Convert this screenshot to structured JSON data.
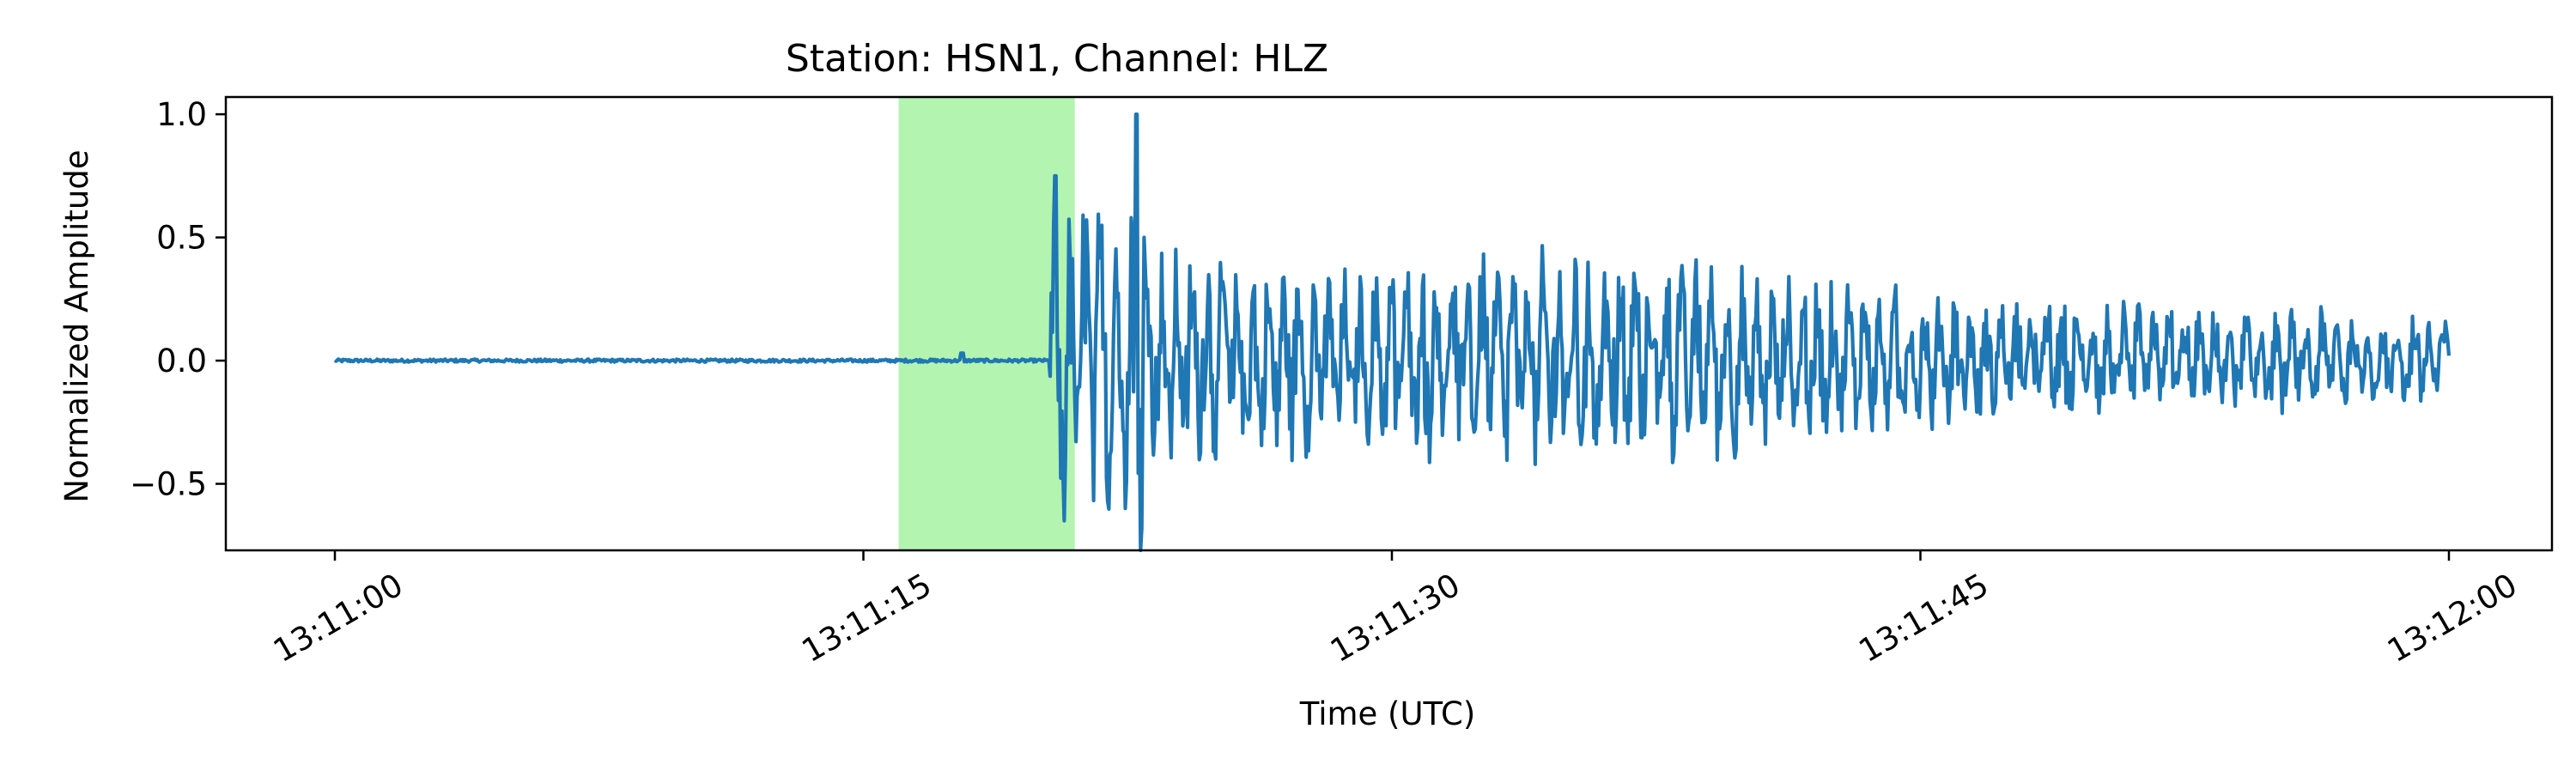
{
  "chart_data": {
    "type": "line",
    "title": "Station: HSN1, Channel: HLZ",
    "xlabel": "Time (UTC)",
    "ylabel": "Normalized Amplitude",
    "x_start": "13:11:00",
    "x_end": "13:12:00",
    "x_ticks": [
      "13:11:00",
      "13:11:15",
      "13:11:30",
      "13:11:45",
      "13:12:00"
    ],
    "ylim": [
      -0.77,
      1.07
    ],
    "y_ticks": [
      1.0,
      0.5,
      0.0,
      -0.5
    ],
    "y_tick_labels": [
      "1.0",
      "0.5",
      "0.0",
      "−0.5"
    ],
    "grid": false,
    "highlight": {
      "start": "13:11:16",
      "end": "13:11:21",
      "color": "#b3f4b0"
    },
    "series": [
      {
        "color": "#1f77b4",
        "description_points": [
          {
            "t": "13:11:00",
            "envelope": 0.01
          },
          {
            "t": "13:11:20",
            "envelope": 0.01
          },
          {
            "t": "13:11:20.2",
            "envelope": 0.75
          },
          {
            "t": "13:11:23",
            "envelope": 1.0
          },
          {
            "t": "13:11:30",
            "envelope": 0.45
          },
          {
            "t": "13:11:38",
            "envelope": 0.6
          },
          {
            "t": "13:11:45",
            "envelope": 0.35
          },
          {
            "t": "13:12:00",
            "envelope": 0.22
          }
        ]
      }
    ]
  }
}
